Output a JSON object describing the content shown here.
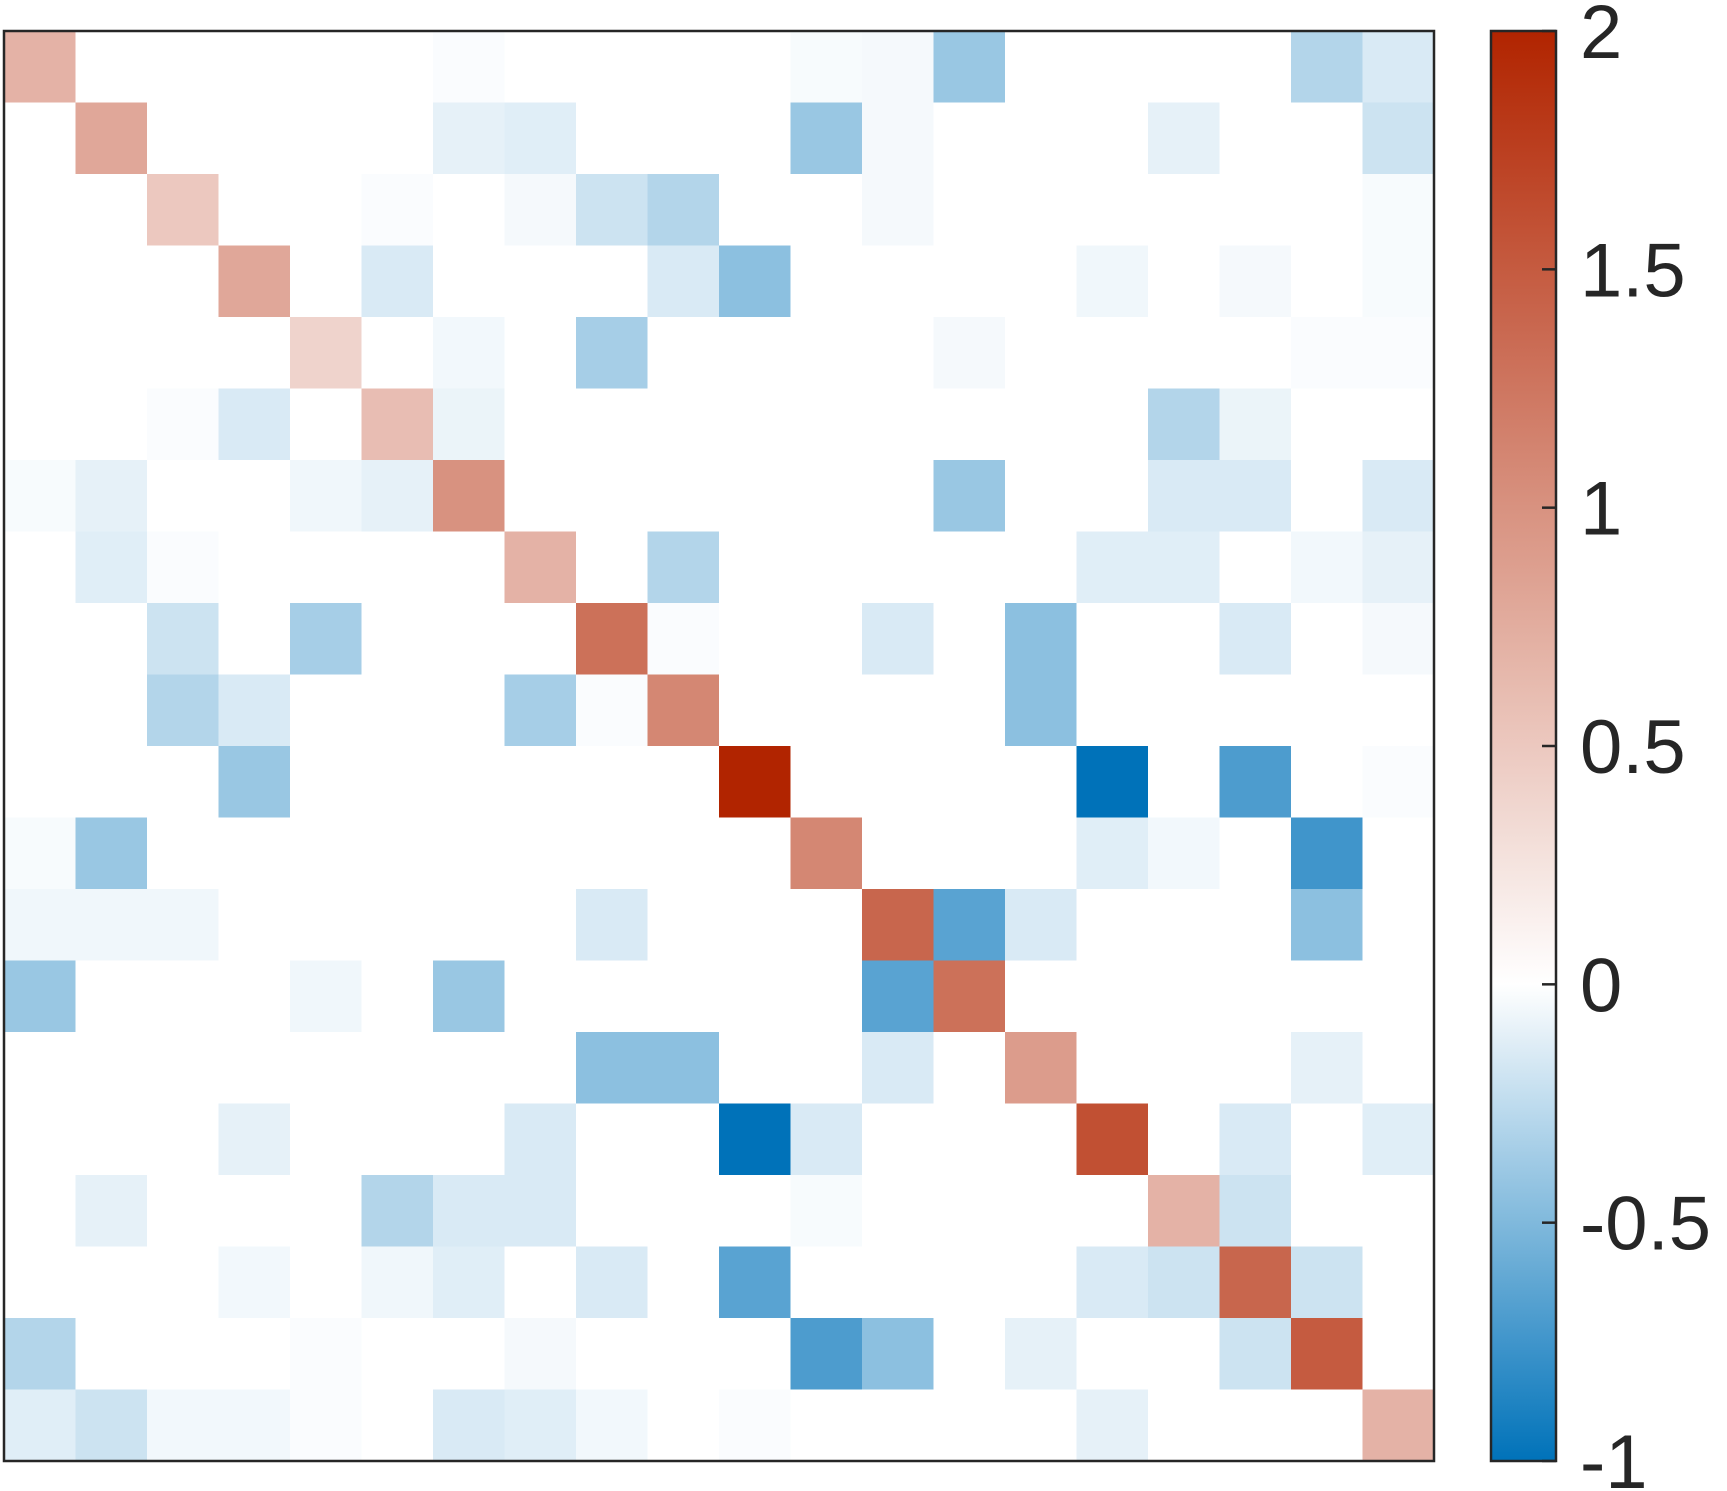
{
  "chart_data": {
    "type": "heatmap",
    "title": "",
    "xlabel": "",
    "ylabel": "",
    "n": 20,
    "colormap": {
      "low_color": "#0072B9",
      "mid_color": "#FFFFFF",
      "high_color": "#B12400",
      "min": -1,
      "mid": 0,
      "max": 2
    },
    "colorbar_ticks": [
      {
        "value": 2,
        "label": "2"
      },
      {
        "value": 1.5,
        "label": "1.5"
      },
      {
        "value": 1,
        "label": "1"
      },
      {
        "value": 0.5,
        "label": "0.5"
      },
      {
        "value": 0,
        "label": "0"
      },
      {
        "value": -0.5,
        "label": "-0.5"
      },
      {
        "value": -1,
        "label": "-1"
      }
    ],
    "values": [
      [
        0.7,
        0,
        0,
        0,
        0,
        0,
        -0.02,
        0,
        0,
        0,
        0,
        -0.03,
        -0.04,
        -0.4,
        0,
        0,
        0,
        0,
        -0.3,
        -0.15
      ],
      [
        0,
        0.8,
        0,
        0,
        0,
        0,
        -0.1,
        -0.12,
        0,
        0,
        0,
        -0.4,
        -0.04,
        0,
        0,
        0,
        -0.1,
        0,
        0,
        -0.2
      ],
      [
        0,
        0,
        0.5,
        0,
        0,
        -0.02,
        0,
        -0.04,
        -0.2,
        -0.3,
        0,
        0,
        -0.04,
        0,
        0,
        0,
        0,
        0,
        0,
        -0.03
      ],
      [
        0,
        0,
        0,
        0.8,
        0,
        -0.15,
        0,
        0,
        0,
        -0.15,
        -0.45,
        0,
        0,
        0,
        0,
        -0.06,
        0,
        -0.04,
        0,
        -0.03
      ],
      [
        0,
        0,
        0,
        0,
        0.4,
        0,
        -0.05,
        0,
        -0.35,
        0,
        0,
        0,
        0,
        -0.04,
        0,
        0,
        0,
        0,
        -0.02,
        -0.02
      ],
      [
        0,
        0,
        -0.02,
        -0.15,
        0,
        0.6,
        -0.08,
        0,
        0,
        0,
        0,
        0,
        0,
        0,
        0,
        0,
        -0.3,
        -0.08,
        0,
        0
      ],
      [
        -0.03,
        -0.1,
        0,
        0,
        -0.06,
        -0.1,
        1.0,
        0,
        0,
        0,
        0,
        0,
        0,
        -0.4,
        0,
        0,
        -0.15,
        -0.15,
        0,
        -0.15
      ],
      [
        0,
        -0.12,
        -0.02,
        0,
        0,
        0,
        0,
        0.7,
        0,
        -0.3,
        0,
        0,
        0,
        0,
        0,
        -0.12,
        -0.12,
        0,
        -0.05,
        -0.1
      ],
      [
        0,
        0,
        -0.2,
        0,
        -0.35,
        0,
        0,
        0,
        1.3,
        -0.02,
        0,
        0,
        -0.15,
        0,
        -0.45,
        0,
        0,
        -0.15,
        0,
        -0.04
      ],
      [
        0,
        0,
        -0.3,
        -0.15,
        0,
        0,
        0,
        -0.35,
        -0.02,
        1.1,
        0,
        0,
        0,
        0,
        -0.45,
        0,
        0,
        0,
        0,
        0
      ],
      [
        0,
        0,
        0,
        -0.4,
        0,
        0,
        0,
        0,
        0,
        0,
        2.0,
        0,
        0,
        0,
        0,
        -1.0,
        0,
        -0.7,
        0,
        -0.02
      ],
      [
        -0.03,
        -0.4,
        0,
        0,
        0,
        0,
        0,
        0,
        0,
        0,
        0,
        1.1,
        0,
        0,
        0,
        -0.12,
        -0.05,
        0,
        -0.75,
        0
      ],
      [
        -0.06,
        -0.06,
        -0.06,
        0,
        0,
        0,
        0,
        0,
        -0.15,
        0,
        0,
        0,
        1.4,
        -0.65,
        -0.15,
        0,
        0,
        0,
        -0.45,
        0
      ],
      [
        -0.4,
        0,
        0,
        0,
        -0.06,
        0,
        -0.4,
        0,
        0,
        0,
        0,
        0,
        -0.65,
        1.3,
        0,
        0,
        0,
        0,
        0,
        0
      ],
      [
        0,
        0,
        0,
        0,
        0,
        0,
        0,
        0,
        -0.45,
        -0.45,
        0,
        0,
        -0.15,
        0,
        0.9,
        0,
        0,
        0,
        -0.1,
        0
      ],
      [
        0,
        0,
        0,
        -0.1,
        0,
        0,
        0,
        -0.15,
        0,
        0,
        -1.0,
        -0.15,
        0,
        0,
        0,
        1.6,
        0,
        -0.15,
        0,
        -0.12
      ],
      [
        0,
        -0.1,
        0,
        0,
        0,
        -0.3,
        -0.15,
        -0.15,
        0,
        0,
        0,
        -0.03,
        0,
        0,
        0,
        0,
        0.7,
        -0.2,
        0,
        0
      ],
      [
        0,
        0,
        0,
        -0.05,
        0,
        -0.06,
        -0.12,
        0,
        -0.15,
        0,
        -0.65,
        0,
        0,
        0,
        0,
        -0.15,
        -0.2,
        1.4,
        -0.2,
        0
      ],
      [
        -0.3,
        0,
        0,
        0,
        -0.02,
        0,
        0,
        -0.04,
        0,
        0,
        0,
        -0.7,
        -0.45,
        0,
        -0.1,
        0,
        0,
        -0.2,
        1.5,
        0
      ],
      [
        -0.12,
        -0.2,
        -0.05,
        -0.05,
        -0.02,
        0,
        -0.15,
        -0.12,
        -0.05,
        0,
        -0.02,
        0,
        0,
        0,
        0,
        -0.1,
        0,
        0,
        0,
        0.7
      ]
    ]
  }
}
